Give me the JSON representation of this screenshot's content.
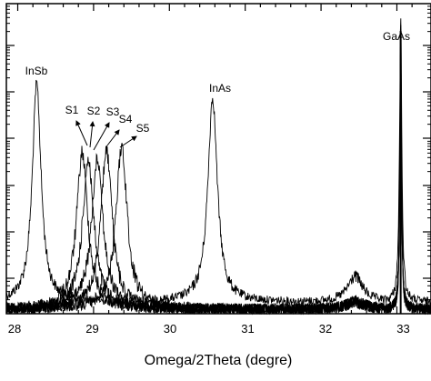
{
  "chart_data": {
    "type": "line",
    "title": "",
    "xlabel": "Omega/2Theta (degre)",
    "ylabel": "",
    "xlim": [
      27.85,
      33.45
    ],
    "ylim": [
      0,
      1
    ],
    "y_scale": "log",
    "y_tick_labels_shown": false,
    "xticks": [
      28,
      29,
      30,
      31,
      32,
      33
    ],
    "grid": false,
    "peaks": [
      {
        "label": "InSb",
        "x": 28.25
      },
      {
        "label": "InAs",
        "x": 30.57
      },
      {
        "label": "GaAs",
        "x": 33.05
      }
    ],
    "series": [
      {
        "name": "S1",
        "peak_x": 28.85
      },
      {
        "name": "S2",
        "peak_x": 28.93
      },
      {
        "name": "S3",
        "peak_x": 29.05
      },
      {
        "name": "S4",
        "peak_x": 29.17
      },
      {
        "name": "S5",
        "peak_x": 29.37
      }
    ]
  }
}
